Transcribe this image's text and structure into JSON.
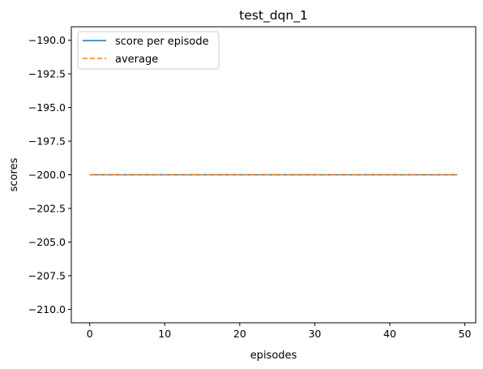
{
  "chart_data": {
    "type": "line",
    "title": "test_dqn_1",
    "xlabel": "episodes",
    "ylabel": "scores",
    "xlim": [
      -2.45,
      51.45
    ],
    "ylim": [
      -211.0,
      -189.0
    ],
    "xticks": [
      0,
      10,
      20,
      30,
      40,
      50
    ],
    "yticks": [
      -190.0,
      -192.5,
      -195.0,
      -197.5,
      -200.0,
      -202.5,
      -205.0,
      -207.5,
      -210.0
    ],
    "xtick_labels": [
      "0",
      "10",
      "20",
      "30",
      "40",
      "50"
    ],
    "ytick_labels": [
      "−190.0",
      "−192.5",
      "−195.0",
      "−197.5",
      "−200.0",
      "−202.5",
      "−205.0",
      "−207.5",
      "−210.0"
    ],
    "grid": false,
    "legend_position": "top-left",
    "series": [
      {
        "name": "score per episode",
        "color": "#1f77b4",
        "style": "solid",
        "x": [
          0,
          1,
          2,
          3,
          4,
          5,
          6,
          7,
          8,
          9,
          10,
          11,
          12,
          13,
          14,
          15,
          16,
          17,
          18,
          19,
          20,
          21,
          22,
          23,
          24,
          25,
          26,
          27,
          28,
          29,
          30,
          31,
          32,
          33,
          34,
          35,
          36,
          37,
          38,
          39,
          40,
          41,
          42,
          43,
          44,
          45,
          46,
          47,
          48,
          49
        ],
        "values": [
          -200,
          -200,
          -200,
          -200,
          -200,
          -200,
          -200,
          -200,
          -200,
          -200,
          -200,
          -200,
          -200,
          -200,
          -200,
          -200,
          -200,
          -200,
          -200,
          -200,
          -200,
          -200,
          -200,
          -200,
          -200,
          -200,
          -200,
          -200,
          -200,
          -200,
          -200,
          -200,
          -200,
          -200,
          -200,
          -200,
          -200,
          -200,
          -200,
          -200,
          -200,
          -200,
          -200,
          -200,
          -200,
          -200,
          -200,
          -200,
          -200,
          -200
        ]
      },
      {
        "name": "average",
        "color": "#ff7f0e",
        "style": "dashed",
        "x": [
          0,
          1,
          2,
          3,
          4,
          5,
          6,
          7,
          8,
          9,
          10,
          11,
          12,
          13,
          14,
          15,
          16,
          17,
          18,
          19,
          20,
          21,
          22,
          23,
          24,
          25,
          26,
          27,
          28,
          29,
          30,
          31,
          32,
          33,
          34,
          35,
          36,
          37,
          38,
          39,
          40,
          41,
          42,
          43,
          44,
          45,
          46,
          47,
          48,
          49
        ],
        "values": [
          -200,
          -200,
          -200,
          -200,
          -200,
          -200,
          -200,
          -200,
          -200,
          -200,
          -200,
          -200,
          -200,
          -200,
          -200,
          -200,
          -200,
          -200,
          -200,
          -200,
          -200,
          -200,
          -200,
          -200,
          -200,
          -200,
          -200,
          -200,
          -200,
          -200,
          -200,
          -200,
          -200,
          -200,
          -200,
          -200,
          -200,
          -200,
          -200,
          -200,
          -200,
          -200,
          -200,
          -200,
          -200,
          -200,
          -200,
          -200,
          -200,
          -200
        ]
      }
    ]
  }
}
